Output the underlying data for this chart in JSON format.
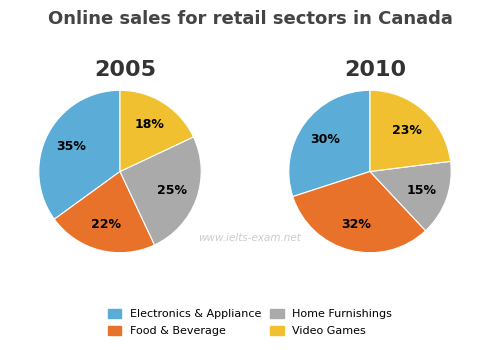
{
  "title": "Online sales for retail sectors in Canada",
  "title_fontsize": 13,
  "pie2005_title": "2005",
  "pie2010_title": "2010",
  "subtitle_fontsize": 16,
  "categories": [
    "Electronics & Appliance",
    "Food & Beverage",
    "Home Furnishings",
    "Video Games"
  ],
  "values_2005": [
    35,
    22,
    25,
    18
  ],
  "values_2010": [
    30,
    32,
    15,
    23
  ],
  "colors": [
    "#5BACD6",
    "#E8722A",
    "#AAAAAA",
    "#F0C030"
  ],
  "label_fontsize": 9,
  "watermark": "www.ielts-exam.net",
  "legend_labels": [
    "Electronics & Appliance",
    "Food & Beverage",
    "Home Furnishings",
    "Video Games"
  ],
  "title_color": "#444444",
  "subtitle_color": "#333333"
}
